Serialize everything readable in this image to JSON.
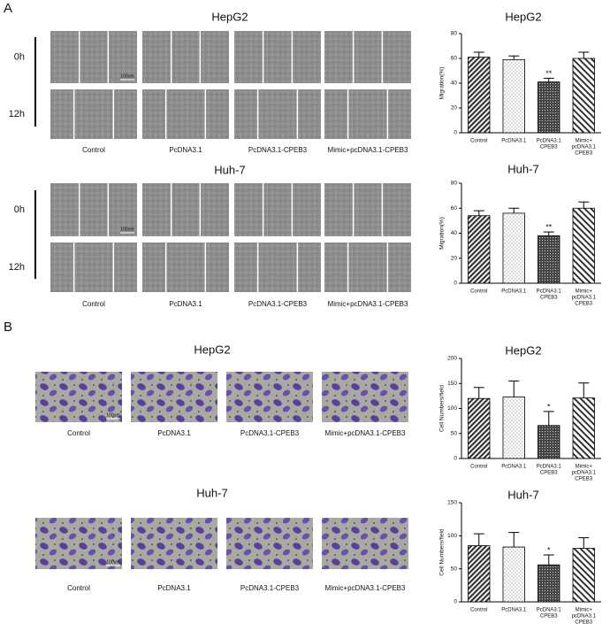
{
  "panel_a": {
    "label": "A",
    "groups": [
      {
        "title": "HepG2",
        "rows": [
          "0h",
          "12h"
        ],
        "columns": [
          "Control",
          "PcDNA3.1",
          "PcDNA3.1-CPEB3",
          "Mimic+pcDNA3.1-CPEB3"
        ],
        "scale": "100um"
      },
      {
        "title": "Huh-7",
        "rows": [
          "0h",
          "12h"
        ],
        "columns": [
          "Control",
          "PcDNA3.1",
          "PcDNA3.1-CPEB3",
          "Mimic+pcDNA3.1-CPEB3"
        ],
        "scale": "100um"
      }
    ]
  },
  "panel_b": {
    "label": "B",
    "groups": [
      {
        "title": "HepG2",
        "columns": [
          "Control",
          "PcDNA3.1",
          "PcDNA3.1-CPEB3",
          "Mimic+pcDNA3.1-CPEB3"
        ],
        "scale": "100um"
      },
      {
        "title": "Huh-7",
        "columns": [
          "Control",
          "PcDNA3.1",
          "PcDNA3.1-CPEB3",
          "Mimic+pcDNA3.1-CPEB3"
        ],
        "scale": "100um"
      }
    ]
  },
  "chart_data": [
    {
      "type": "bar",
      "title": "HepG2",
      "ylabel": "Migration(%)",
      "categories": [
        [
          "Control"
        ],
        [
          "PcDNA3.1"
        ],
        [
          "PcDNA3.1",
          "CPEB3"
        ],
        [
          "Mimic+",
          "pcDNA3.1",
          "CPEB3"
        ]
      ],
      "values": [
        61,
        59,
        41,
        60
      ],
      "errors": [
        4,
        3,
        3,
        5
      ],
      "significance": [
        null,
        null,
        "**",
        null
      ],
      "ylim": [
        0,
        80
      ],
      "yticks": [
        0,
        20,
        40,
        60,
        80
      ]
    },
    {
      "type": "bar",
      "title": "Huh-7",
      "ylabel": "Migration(%)",
      "categories": [
        [
          "Control"
        ],
        [
          "PcDNA3.1"
        ],
        [
          "PcDNA3.1",
          "CPEB3"
        ],
        [
          "Mimic+",
          "pcDNA3.1",
          "CPEB3"
        ]
      ],
      "values": [
        54,
        56,
        38,
        60
      ],
      "errors": [
        4,
        4,
        3,
        5
      ],
      "significance": [
        null,
        null,
        "**",
        null
      ],
      "ylim": [
        0,
        80
      ],
      "yticks": [
        0,
        20,
        40,
        60,
        80
      ]
    },
    {
      "type": "bar",
      "title": "HepG2",
      "ylabel": "Cell Numbers/field",
      "categories": [
        [
          "Control"
        ],
        [
          "PcDNA3.1"
        ],
        [
          "PcDNA3.1",
          "CPEB3"
        ],
        [
          "Mimic+",
          "pcDNA3.1",
          "CPEB3"
        ]
      ],
      "values": [
        120,
        123,
        66,
        121
      ],
      "errors": [
        22,
        32,
        28,
        30
      ],
      "significance": [
        null,
        null,
        "*",
        null
      ],
      "ylim": [
        0,
        200
      ],
      "yticks": [
        0,
        50,
        100,
        150,
        200
      ]
    },
    {
      "type": "bar",
      "title": "Huh-7",
      "ylabel": "Cell Numbers/field",
      "categories": [
        [
          "Control"
        ],
        [
          "PcDNA3.1"
        ],
        [
          "PcDNA3.1",
          "CPEB3"
        ],
        [
          "Mimic+",
          "pcDNA3.1",
          "CPEB3"
        ]
      ],
      "values": [
        85,
        83,
        56,
        81
      ],
      "errors": [
        18,
        22,
        15,
        16
      ],
      "significance": [
        null,
        null,
        "*",
        null
      ],
      "ylim": [
        0,
        150
      ],
      "yticks": [
        0,
        50,
        100,
        150
      ]
    }
  ]
}
